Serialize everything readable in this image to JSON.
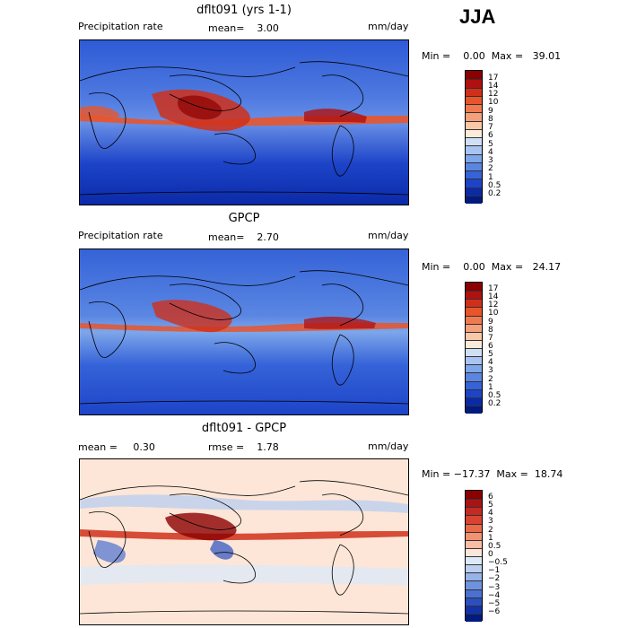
{
  "season": "JJA",
  "panels": [
    {
      "title": "dflt091 (yrs 1-1)",
      "left_label": "Precipitation rate",
      "stat1": "mean=    3.00",
      "stat2": "",
      "units": "mm/day",
      "minmax": "Min =    0.00  Max =   39.01",
      "colorbar": {
        "ticks": [
          "17",
          "14",
          "12",
          "10",
          "9",
          "8",
          "7",
          "6",
          "5",
          "4",
          "3",
          "2",
          "1",
          "0.5",
          "0.2"
        ],
        "colors": [
          "#8b0000",
          "#b01010",
          "#d0301a",
          "#e8552b",
          "#f07a50",
          "#f4a07b",
          "#f8c8a8",
          "#fcebd8",
          "#cfe0f5",
          "#a9c4f0",
          "#7ea6ea",
          "#5a86e2",
          "#3563d8",
          "#1d44c8",
          "#0b2aa8",
          "#001a80"
        ]
      }
    },
    {
      "title": "GPCP",
      "left_label": "Precipitation rate",
      "stat1": "mean=    2.70",
      "stat2": "",
      "units": "mm/day",
      "minmax": "Min =    0.00  Max =   24.17",
      "colorbar": {
        "ticks": [
          "17",
          "14",
          "12",
          "10",
          "9",
          "8",
          "7",
          "6",
          "5",
          "4",
          "3",
          "2",
          "1",
          "0.5",
          "0.2"
        ],
        "colors": [
          "#8b0000",
          "#b01010",
          "#d0301a",
          "#e8552b",
          "#f07a50",
          "#f4a07b",
          "#f8c8a8",
          "#fcebd8",
          "#cfe0f5",
          "#a9c4f0",
          "#7ea6ea",
          "#5a86e2",
          "#3563d8",
          "#1d44c8",
          "#0b2aa8",
          "#001a80"
        ]
      }
    },
    {
      "title": "dflt091 - GPCP",
      "left_label": "mean =     0.30",
      "stat1": "rmse =    1.78",
      "stat2": "",
      "units": "mm/day",
      "minmax": "Min = −17.37  Max =  18.74",
      "colorbar": {
        "ticks": [
          "6",
          "5",
          "4",
          "3",
          "2",
          "1",
          "0.5",
          "0",
          "−0.5",
          "−1",
          "−2",
          "−3",
          "−4",
          "−5",
          "−6"
        ],
        "colors": [
          "#8b0000",
          "#a81414",
          "#c42a22",
          "#d8442f",
          "#e86a48",
          "#f29272",
          "#f8bda4",
          "#fde6d8",
          "#dde8f8",
          "#bccff0",
          "#97b3e8",
          "#6f92de",
          "#4a70d2",
          "#2a4fc0",
          "#1431a8",
          "#001a80"
        ]
      }
    }
  ],
  "map_colors": {
    "ocean_dry": "#1a3fc8",
    "ocean_mid": "#4f7ae0",
    "itcz": "#e8552b",
    "itcz_core": "#b01010",
    "diff_base": "#fde6d8",
    "diff_pos": "#d0301a",
    "diff_neg": "#3563d8"
  }
}
